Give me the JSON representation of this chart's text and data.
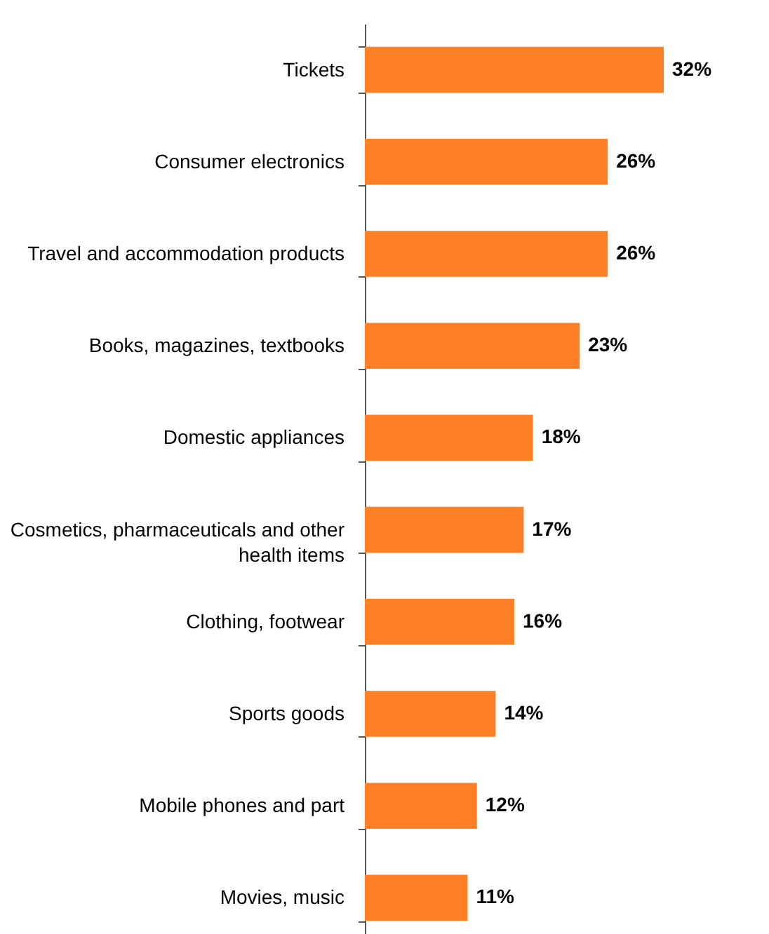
{
  "chart_data": {
    "type": "bar",
    "orientation": "horizontal",
    "categories": [
      "Tickets",
      "Consumer electronics",
      "Travel and accommodation products",
      "Books, magazines, textbooks",
      "Domestic appliances",
      "Cosmetics, pharmaceuticals and other health items",
      "Clothing, footwear",
      "Sports goods",
      "Mobile phones and part",
      "Movies, music"
    ],
    "values": [
      32,
      26,
      26,
      23,
      18,
      17,
      16,
      14,
      12,
      11
    ],
    "value_labels": [
      "32%",
      "26%",
      "26%",
      "23%",
      "18%",
      "17%",
      "16%",
      "14%",
      "12%",
      "11%"
    ],
    "color": "#ff7f27",
    "grid": false
  }
}
